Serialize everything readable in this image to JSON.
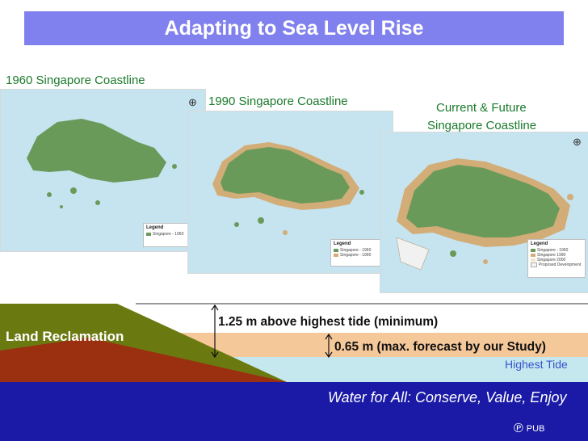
{
  "title": "Adapting to Sea Level Rise",
  "maps": [
    {
      "caption": "1960 Singapore Coastline",
      "legend_title": "Legend",
      "legend_items": [
        "Singapore - 1960"
      ]
    },
    {
      "caption": "1990 Singapore Coastline",
      "legend_title": "Legend",
      "legend_items": [
        "Singapore - 1960",
        "Singapore - 1990"
      ]
    },
    {
      "caption": "Current & Future",
      "caption2": "Singapore Coastline",
      "legend_title": "Legend",
      "legend_items": [
        "Singapore - 1960",
        "Singapore 1990",
        "Singapore 2000",
        "Proposed Development"
      ]
    }
  ],
  "diagram": {
    "land_label": "Land Reclamation",
    "level_1": "1.25 m above highest tide (minimum)",
    "level_2": "0.65 m (max. forecast by our Study)",
    "tide_label": "Highest Tide"
  },
  "footer": {
    "slogan": "Water for All: Conserve, Value, Enjoy",
    "logo_text": "PUB"
  },
  "colors": {
    "title_bar": "#8080ee",
    "footer_bar": "#1a1aa6",
    "land_green": "#6a9a5a",
    "reclaim_tan": "#d2ad78",
    "sea": "#c6e4f0",
    "olive": "#6b7a10",
    "dark_red": "#9a3010",
    "peach": "#f5c89a",
    "water": "#c5e7ee"
  }
}
